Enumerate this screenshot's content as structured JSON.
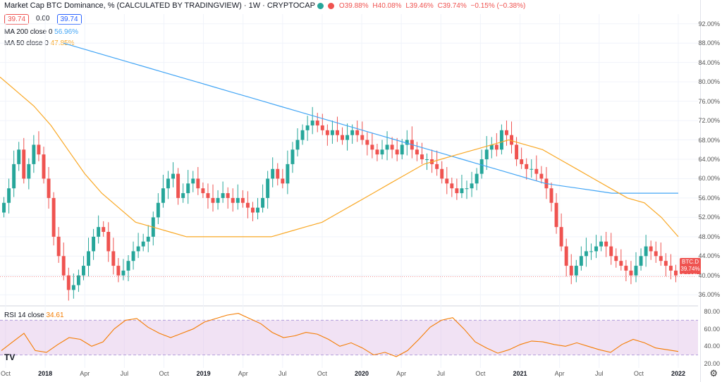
{
  "header": {
    "title": "Market Cap BTC Dominance, % (CALCULATED BY TRADINGVIEW) · 1W · CRYPTOCAP",
    "ohlc": {
      "o": "O39.88%",
      "h": "H40.08%",
      "l": "L39.46%",
      "c": "C39.74%",
      "chg": "−0.15% (−0.38%)"
    },
    "sell_value": "39.74",
    "spread": "0.00",
    "buy_value": "39.74"
  },
  "indicators": {
    "ma200": {
      "label": "MA 200 close 0",
      "value": "56.96%",
      "color": "#42a5f5"
    },
    "ma50": {
      "label": "MA 50 close 0",
      "value": "47.85%",
      "color": "#f9a825"
    }
  },
  "rsi": {
    "label": "RSI 14 close",
    "value": "34.61",
    "color": "#f57c00"
  },
  "price_tag": {
    "symbol": "BTC.D",
    "value": "39.74%",
    "countdown": "5d 18h"
  },
  "chart_data": [
    {
      "type": "candlestick",
      "title": "Market Cap BTC Dominance, %",
      "ylim": [
        34,
        94
      ],
      "y_ticks": [
        "36.00%",
        "40.00%",
        "44.00%",
        "48.00%",
        "52.00%",
        "56.00%",
        "60.00%",
        "64.00%",
        "68.00%",
        "72.00%",
        "76.00%",
        "80.00%",
        "84.00%",
        "88.00%",
        "92.00%"
      ],
      "x_ticks": [
        "Oct",
        "2018",
        "Apr",
        "Jul",
        "Oct",
        "2019",
        "Apr",
        "Jul",
        "Oct",
        "2020",
        "Apr",
        "Jul",
        "Oct",
        "2021",
        "Apr",
        "Jul",
        "Oct",
        "2022"
      ],
      "close": [
        55,
        58,
        63,
        66,
        60,
        63,
        67,
        65,
        60,
        56,
        48,
        44,
        40,
        37,
        38,
        40,
        42,
        45,
        48,
        50,
        49,
        45,
        42,
        40,
        41,
        43,
        45,
        46,
        47,
        48,
        52,
        55,
        58,
        60,
        61,
        56,
        57,
        59,
        60,
        58,
        57,
        56,
        55,
        56,
        57,
        56,
        55,
        56,
        55,
        54,
        53,
        54,
        56,
        60,
        62,
        60,
        59,
        63,
        66,
        68,
        70,
        71,
        72,
        71,
        70,
        69,
        70,
        69,
        68,
        69,
        70,
        69,
        68,
        67,
        66,
        65,
        66,
        67,
        66,
        65,
        67,
        68,
        66,
        65,
        64,
        64,
        63,
        62,
        60,
        59,
        58,
        57,
        58,
        58,
        59,
        61,
        64,
        66,
        67,
        66,
        70,
        69,
        67,
        64,
        63,
        62,
        62,
        61,
        60,
        58,
        55,
        50,
        46,
        42,
        40,
        42,
        44,
        45,
        45,
        46,
        47,
        46,
        44,
        43,
        42,
        41,
        40,
        42,
        44,
        46,
        45,
        44,
        43,
        42,
        41,
        40
      ],
      "series": [
        {
          "name": "MA 200 close 0",
          "values": [
            88,
            87,
            86,
            85,
            84,
            83,
            82,
            81,
            80,
            79,
            78,
            77,
            76,
            75,
            74,
            73,
            72,
            71,
            70,
            69,
            68,
            67,
            66,
            65,
            64,
            63,
            62,
            61,
            60,
            59,
            58.5,
            58,
            57.5,
            57,
            57,
            57,
            57,
            57
          ]
        },
        {
          "name": "MA 50 close 0",
          "values": [
            81,
            78,
            75,
            71,
            66,
            61,
            57,
            54,
            51,
            50,
            49,
            48,
            48,
            48,
            48,
            48,
            48,
            49,
            50,
            51,
            53,
            55,
            57,
            59,
            61,
            63,
            64,
            65,
            66,
            67,
            68,
            67,
            66,
            64,
            62,
            60,
            58,
            56,
            55,
            52,
            48
          ]
        }
      ]
    },
    {
      "type": "line",
      "title": "RSI 14 close",
      "ylim": [
        15,
        85
      ],
      "y_ticks": [
        "20.00",
        "40.00",
        "60.00",
        "80.00"
      ],
      "band": [
        30,
        70
      ],
      "values": [
        35,
        45,
        55,
        35,
        33,
        42,
        50,
        48,
        40,
        45,
        60,
        70,
        72,
        62,
        55,
        50,
        55,
        60,
        68,
        72,
        76,
        78,
        72,
        66,
        56,
        50,
        52,
        56,
        54,
        48,
        40,
        44,
        38,
        30,
        33,
        28,
        35,
        48,
        62,
        70,
        73,
        60,
        45,
        38,
        32,
        36,
        42,
        46,
        45,
        42,
        40,
        44,
        40,
        36,
        33,
        42,
        48,
        44,
        38,
        36,
        34
      ]
    }
  ]
}
